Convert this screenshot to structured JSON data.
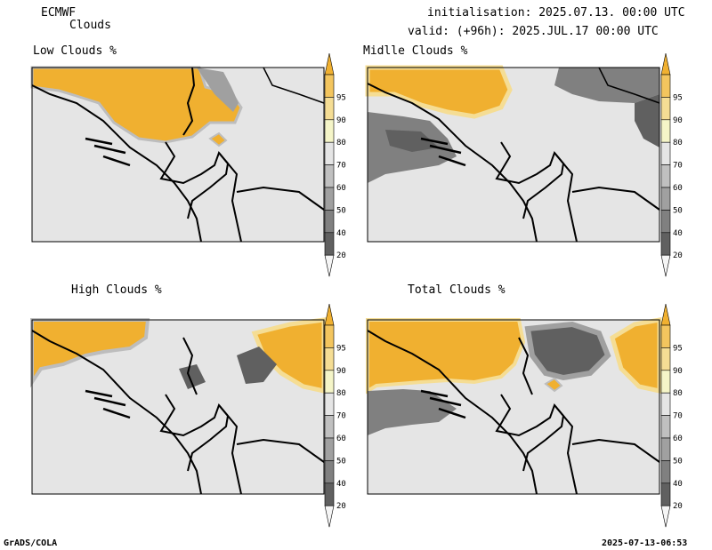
{
  "header": {
    "model": "ECMWF",
    "product": "Clouds",
    "init": "initialisation: 2025.07.13. 00:00 UTC",
    "valid": "valid: (+96h): 2025.JUL.17 00:00 UTC"
  },
  "panels": [
    {
      "title": "Low Clouds %"
    },
    {
      "title": "Midlle Clouds %"
    },
    {
      "title": "High Clouds %"
    },
    {
      "title": "Total Clouds %"
    }
  ],
  "colorbar": {
    "labels": [
      "95",
      "90",
      "80",
      "70",
      "60",
      "50",
      "40",
      "20"
    ],
    "colors": [
      "#f0b030",
      "#f3c55e",
      "#f5dd94",
      "#f5f5c8",
      "#e5e5e5",
      "#c0c0c0",
      "#a0a0a0",
      "#808080",
      "#606060",
      "#f5f5f5"
    ]
  },
  "colors": {
    "background": "#e5e5e5",
    "cloud_high": "#f0b030",
    "cloud_mid": "#f5dd94",
    "grey_dark": "#606060",
    "grey_mid": "#a0a0a0"
  },
  "footer": {
    "left": "GrADS/COLA",
    "right": "2025-07-13-06:53"
  }
}
